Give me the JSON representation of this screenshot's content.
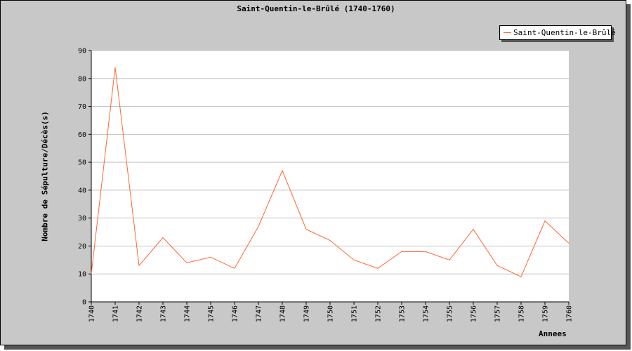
{
  "chart_data": {
    "type": "line",
    "title": "Saint-Quentin-le-Brûlé (1740-1760)",
    "xlabel": "Annees",
    "ylabel": "Nombre de Sépulture/Décès(s)",
    "x": [
      "1740",
      "1741",
      "1742",
      "1743",
      "1744",
      "1745",
      "1746",
      "1747",
      "1748",
      "1749",
      "1750",
      "1751",
      "1752",
      "1753",
      "1754",
      "1755",
      "1756",
      "1757",
      "1758",
      "1759",
      "1760"
    ],
    "series": [
      {
        "name": "Saint-Quentin-le-Brûlé",
        "values": [
          10,
          84,
          13,
          23,
          14,
          16,
          12,
          27,
          47,
          26,
          22,
          15,
          12,
          18,
          18,
          15,
          26,
          13,
          9,
          29,
          21
        ]
      }
    ],
    "ylim": [
      0,
      90
    ],
    "yticks": [
      0,
      10,
      20,
      30,
      40,
      50,
      60,
      70,
      80,
      90
    ],
    "grid": "horizontal",
    "legend_position": "top-right",
    "colors": {
      "line": "#ff6633",
      "background": "#c8c8c8",
      "plot": "#ffffff",
      "grid": "#c0c0c0"
    }
  }
}
